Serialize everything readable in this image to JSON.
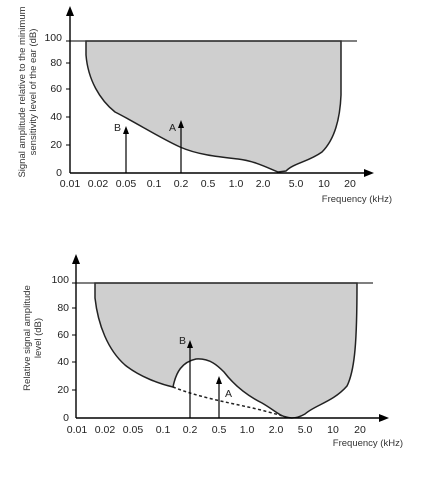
{
  "figure": {
    "top": {
      "ylabel_line1": "Signal amplitude relative to the minimum",
      "ylabel_line2": "sensitivity level of the ear (dB)",
      "xlabel": "Frequency (kHz)",
      "x_ticks": [
        "0.01",
        "0.02",
        "0.05",
        "0.1",
        "0.2",
        "0.5",
        "1.0",
        "2.0",
        "5.0",
        "10",
        "20"
      ],
      "y_ticks": [
        "0",
        "20",
        "40",
        "60",
        "80",
        "100"
      ],
      "markers": [
        {
          "label": "B",
          "freq_khz": 0.05,
          "level_db": 35
        },
        {
          "label": "A",
          "freq_khz": 0.2,
          "level_db": 40
        }
      ]
    },
    "bottom": {
      "ylabel_line1": "Relative signal amplitude",
      "ylabel_line2": "level (dB)",
      "xlabel": "Frequency (kHz)",
      "x_ticks": [
        "0.01",
        "0.02",
        "0.05",
        "0.1",
        "0.2",
        "0.5",
        "1.0",
        "2.0",
        "5.0",
        "10",
        "20"
      ],
      "y_ticks": [
        "0",
        "20",
        "40",
        "60",
        "80",
        "100"
      ],
      "markers": [
        {
          "label": "B",
          "freq_khz": 0.2,
          "level_db": 57
        },
        {
          "label": "A",
          "freq_khz": 0.5,
          "level_db": 30
        }
      ]
    }
  }
}
